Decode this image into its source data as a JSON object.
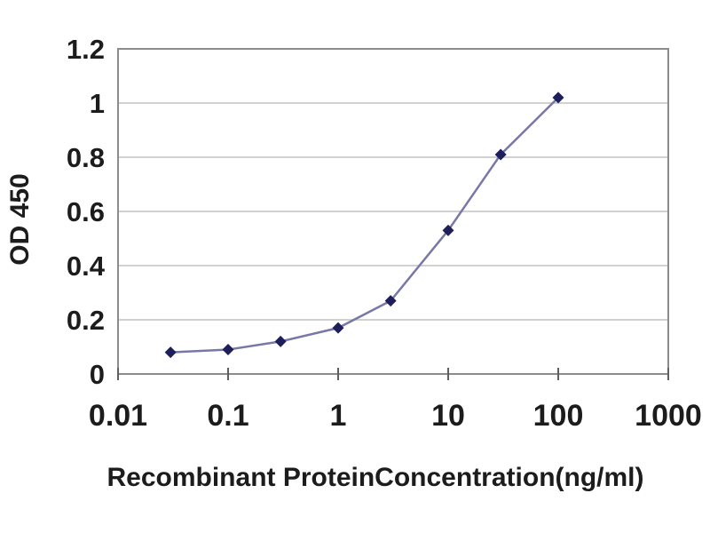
{
  "chart_data": {
    "type": "line",
    "title": "",
    "xlabel": "Recombinant ProteinConcentration(ng/ml)",
    "ylabel": "OD 450",
    "x_scale": "log10",
    "xlim": [
      0.01,
      1000
    ],
    "ylim": [
      0,
      1.2
    ],
    "x_ticks": [
      "0.01",
      "0.1",
      "1",
      "10",
      "100",
      "1000"
    ],
    "x_tick_values": [
      0.01,
      0.1,
      1,
      10,
      100,
      1000
    ],
    "y_ticks": [
      "0",
      "0.2",
      "0.4",
      "0.6",
      "0.8",
      "1",
      "1.2"
    ],
    "y_tick_values": [
      0,
      0.2,
      0.4,
      0.6,
      0.8,
      1,
      1.2
    ],
    "grid": "horizontal-only",
    "legend": "none",
    "series": [
      {
        "marker": "diamond",
        "x": [
          0.03,
          0.1,
          0.3,
          1,
          3,
          10,
          30,
          100
        ],
        "y": [
          0.08,
          0.09,
          0.12,
          0.17,
          0.27,
          0.53,
          0.81,
          1.02
        ]
      }
    ],
    "colors": {
      "marker": "#1e1e5a",
      "line": "#7878a8",
      "gridline": "#c2c2c2",
      "frame": "#8c8c8c",
      "tick": "#606060",
      "text": "#1c1c1c",
      "background": "#ffffff"
    }
  }
}
